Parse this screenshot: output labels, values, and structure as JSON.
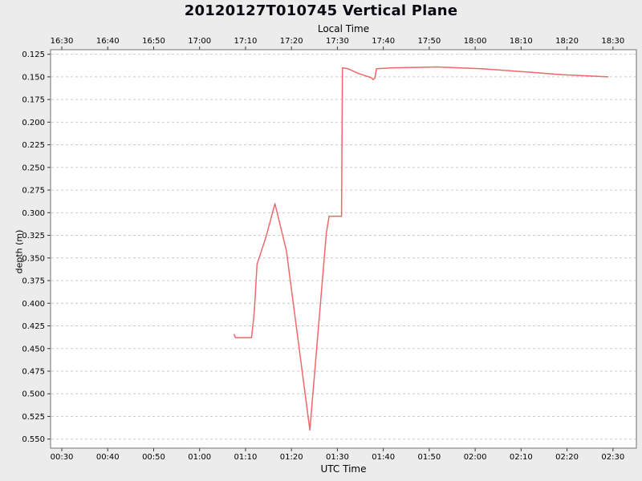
{
  "chart_data": {
    "type": "line",
    "title": "20120127T010745 Vertical Plane",
    "top_axis_label": "Local Time",
    "bottom_axis_label": "UTC Time",
    "ylabel": "depth (m)",
    "x_ticks_local": [
      "16:30",
      "16:40",
      "16:50",
      "17:00",
      "17:10",
      "17:20",
      "17:30",
      "17:40",
      "17:50",
      "18:00",
      "18:10",
      "18:20",
      "18:30"
    ],
    "x_ticks_utc": [
      "00:30",
      "00:40",
      "00:50",
      "01:00",
      "01:10",
      "01:20",
      "01:30",
      "01:40",
      "01:50",
      "02:00",
      "02:10",
      "02:20",
      "02:30"
    ],
    "x_tick_minutes": [
      30,
      40,
      50,
      60,
      70,
      80,
      90,
      100,
      110,
      120,
      130,
      140,
      150
    ],
    "xlim_minutes": [
      27.55,
      155.1
    ],
    "y_ticks": [
      0.125,
      0.15,
      0.175,
      0.2,
      0.225,
      0.25,
      0.275,
      0.3,
      0.325,
      0.35,
      0.375,
      0.4,
      0.425,
      0.45,
      0.475,
      0.5,
      0.525,
      0.55
    ],
    "y_tick_decimals": 3,
    "ylim_depth": [
      0.12,
      0.56
    ],
    "y_inverted": true,
    "grid": "horizontal-dashed",
    "legend": "none",
    "series": [
      {
        "name": "depth",
        "points_minutes_depth": [
          [
            67.5,
            0.434
          ],
          [
            67.8,
            0.438
          ],
          [
            71.3,
            0.438
          ],
          [
            71.8,
            0.415
          ],
          [
            72.0,
            0.402
          ],
          [
            72.5,
            0.357
          ],
          [
            74.5,
            0.326
          ],
          [
            76.4,
            0.29
          ],
          [
            78.9,
            0.342
          ],
          [
            84.0,
            0.54
          ],
          [
            87.6,
            0.322
          ],
          [
            88.2,
            0.304
          ],
          [
            90.9,
            0.304
          ],
          [
            91.1,
            0.14
          ],
          [
            92.3,
            0.141
          ],
          [
            94.5,
            0.146
          ],
          [
            97.4,
            0.151
          ],
          [
            97.8,
            0.153
          ],
          [
            98.2,
            0.151
          ],
          [
            98.5,
            0.141
          ],
          [
            102.0,
            0.14
          ],
          [
            107.5,
            0.1395
          ],
          [
            111.7,
            0.139
          ],
          [
            121.4,
            0.141
          ],
          [
            131.8,
            0.1448
          ],
          [
            138.8,
            0.1475
          ],
          [
            149.0,
            0.15
          ]
        ]
      }
    ],
    "colors": {
      "line": "#f0676c",
      "figure_background": "#ececec",
      "plot_background": "#ffffff",
      "grid": "#cccccc",
      "border": "#707070",
      "tick": "#333333",
      "text": "#000000"
    }
  }
}
